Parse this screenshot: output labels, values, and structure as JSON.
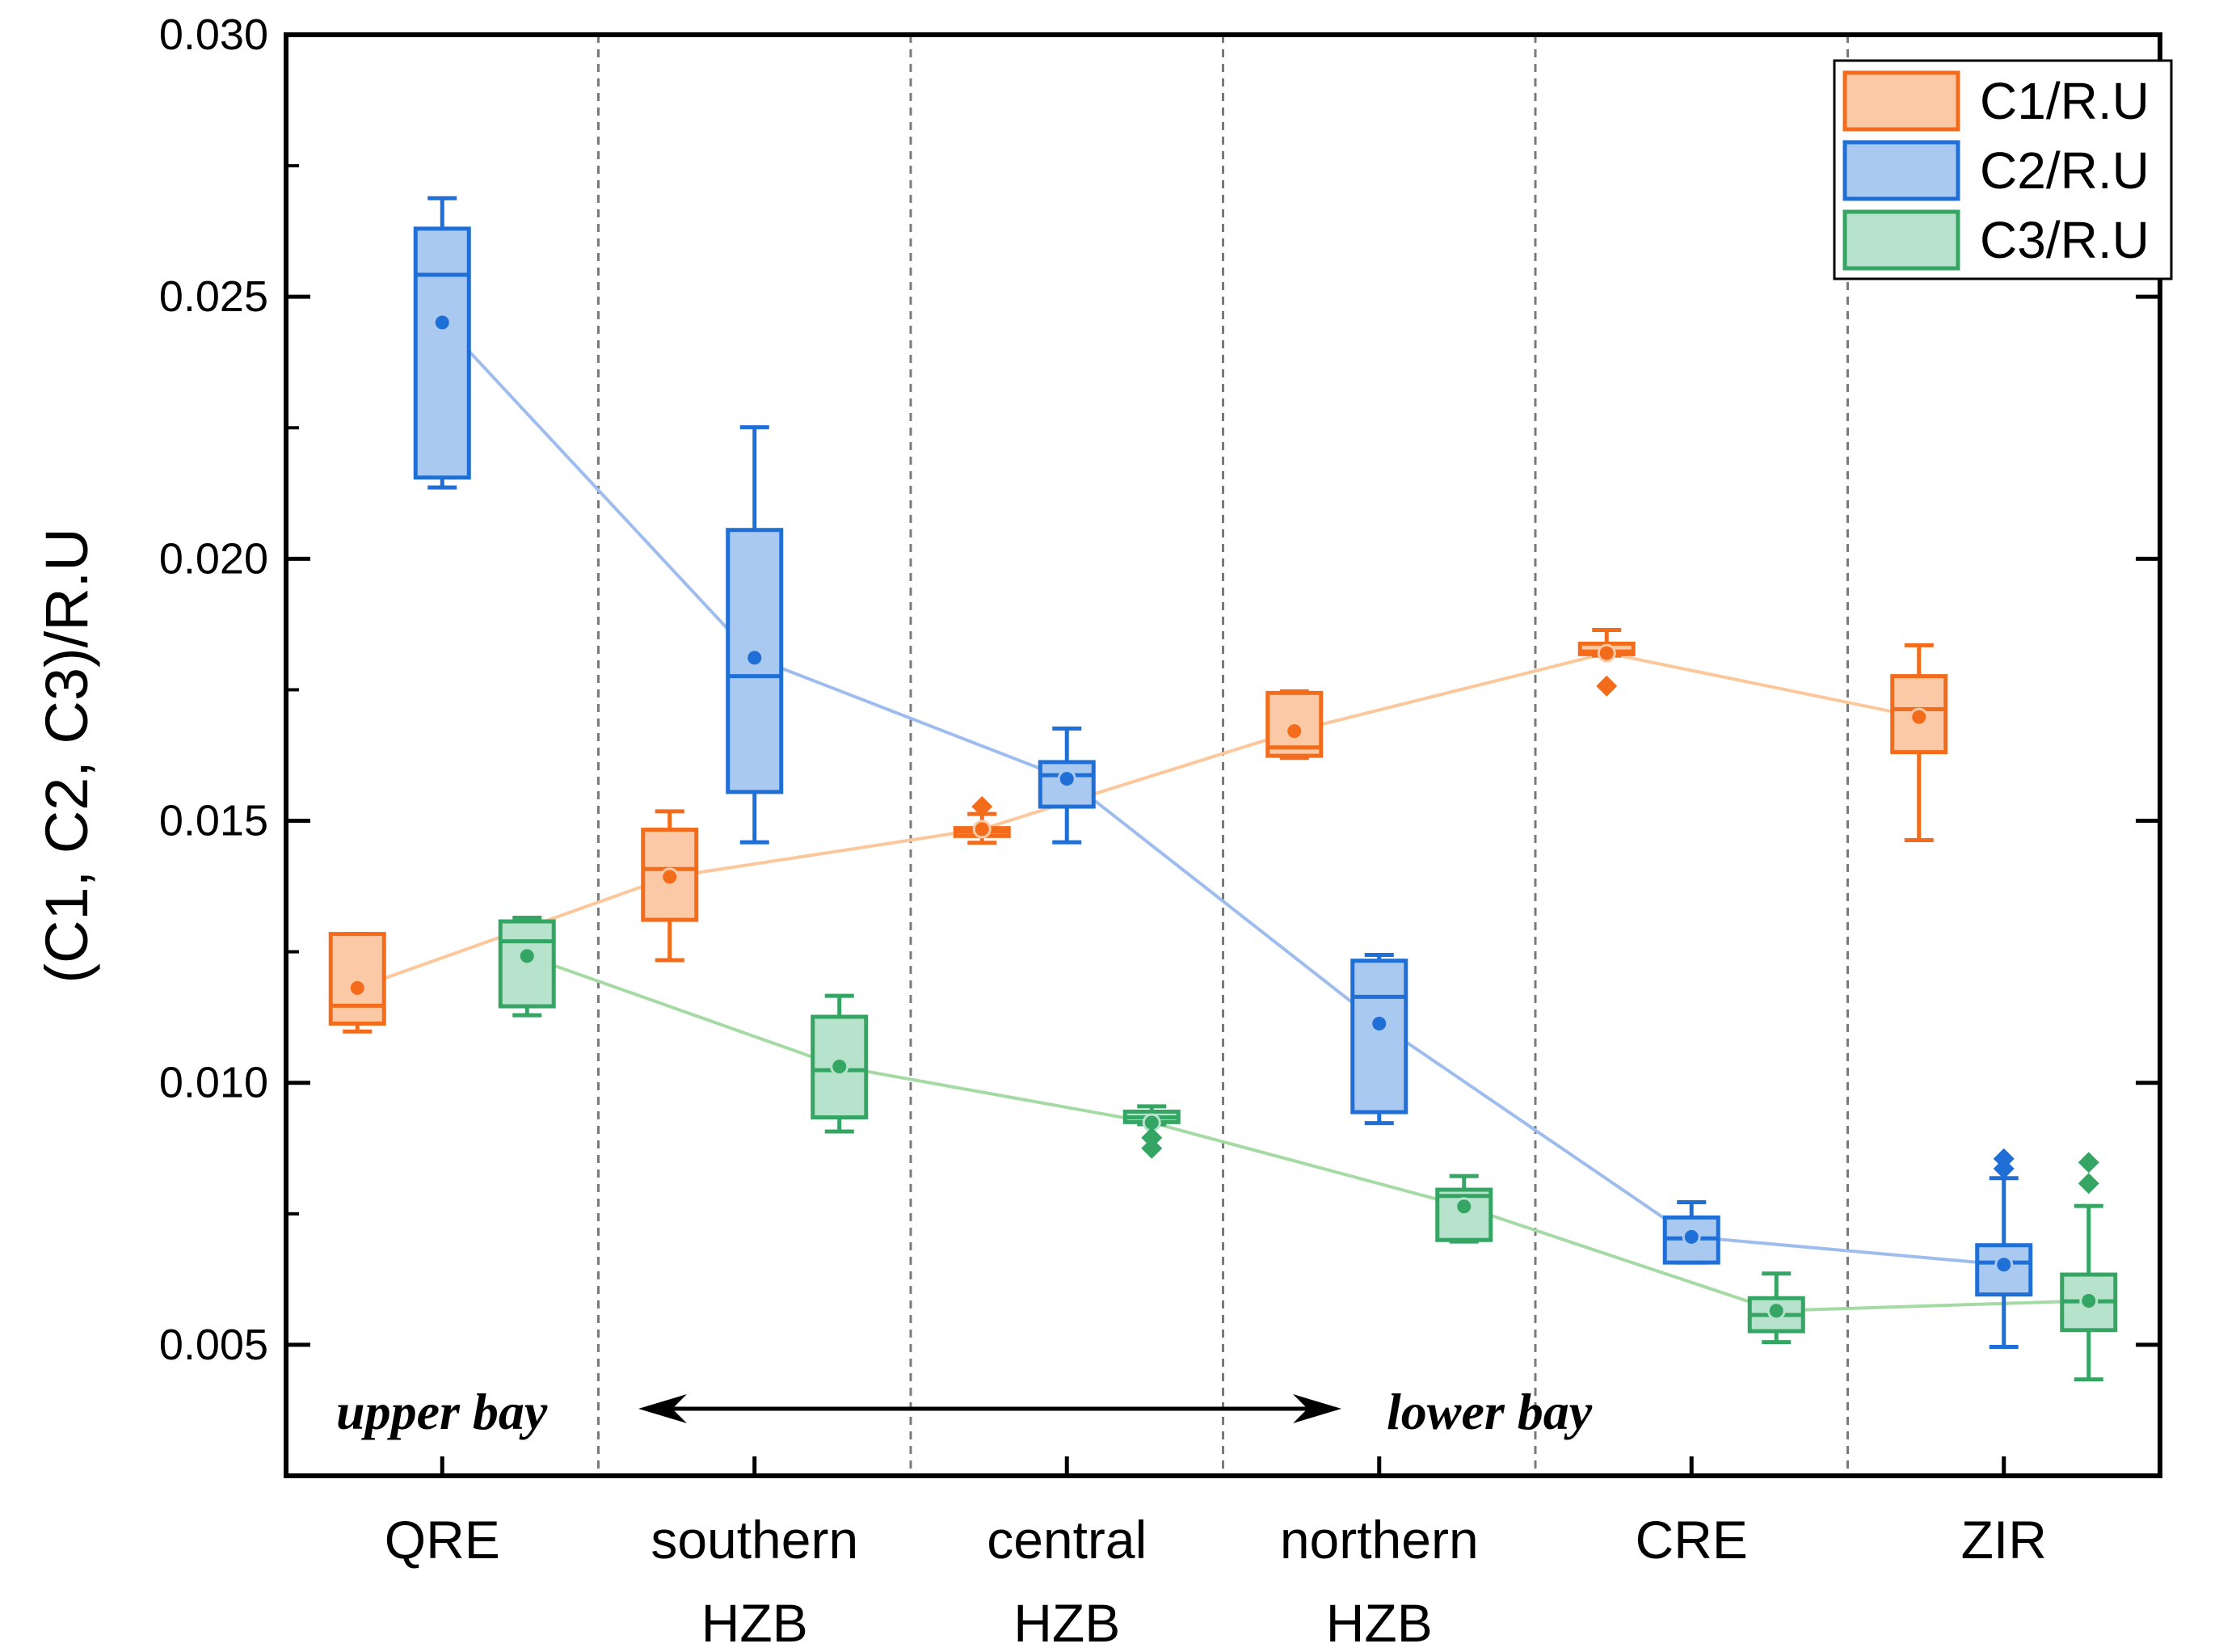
{
  "chart_data": {
    "type": "box",
    "ylabel": "(C1, C2, C3)/R.U",
    "xlabel": "",
    "ylim": [
      0.0025,
      0.03
    ],
    "yticks": [
      "0.005",
      "0.010",
      "0.015",
      "0.020",
      "0.025",
      "0.030"
    ],
    "grid": "vertical dashed separators between categories",
    "legend_position": "top-right",
    "categories": [
      {
        "lines": [
          "QRE"
        ]
      },
      {
        "lines": [
          "southern",
          "HZB"
        ]
      },
      {
        "lines": [
          "central",
          "HZB"
        ]
      },
      {
        "lines": [
          "northern",
          "HZB"
        ]
      },
      {
        "lines": [
          "CRE"
        ]
      },
      {
        "lines": [
          "ZIR"
        ]
      }
    ],
    "series": [
      {
        "name": "C1/R.U",
        "stroke": "#f26c1c",
        "fill": "#fcc9a6",
        "line_color": "#fbc79b",
        "boxes": [
          {
            "min": 0.01098,
            "q1": 0.01113,
            "median": 0.01147,
            "q3": 0.01284,
            "max": 0.01284,
            "mean": 0.01181,
            "outliers": []
          },
          {
            "min": 0.01234,
            "q1": 0.01311,
            "median": 0.01408,
            "q3": 0.01483,
            "max": 0.01518,
            "mean": 0.01393,
            "outliers": []
          },
          {
            "min": 0.01458,
            "q1": 0.01471,
            "median": 0.01479,
            "q3": 0.01486,
            "max": 0.01513,
            "mean": 0.01484,
            "outliers": [
              0.01527
            ]
          },
          {
            "min": 0.0162,
            "q1": 0.01624,
            "median": 0.0164,
            "q3": 0.01744,
            "max": 0.01747,
            "mean": 0.01671,
            "outliers": []
          },
          {
            "min": 0.01815,
            "q1": 0.01818,
            "median": 0.01823,
            "q3": 0.01838,
            "max": 0.01864,
            "mean": 0.0182,
            "outliers": [
              0.01757
            ]
          },
          {
            "min": 0.01463,
            "q1": 0.01631,
            "median": 0.01713,
            "q3": 0.01776,
            "max": 0.01835,
            "mean": 0.01698,
            "outliers": []
          }
        ]
      },
      {
        "name": "C2/R.U",
        "stroke": "#1f6fd6",
        "fill": "#aac9f1",
        "line_color": "#9ebdee",
        "boxes": [
          {
            "min": 0.02136,
            "q1": 0.02155,
            "median": 0.02542,
            "q3": 0.0263,
            "max": 0.02688,
            "mean": 0.02451,
            "outliers": []
          },
          {
            "min": 0.01459,
            "q1": 0.01555,
            "median": 0.01776,
            "q3": 0.02055,
            "max": 0.02251,
            "mean": 0.01811,
            "outliers": []
          },
          {
            "min": 0.01459,
            "q1": 0.01527,
            "median": 0.01587,
            "q3": 0.01612,
            "max": 0.01676,
            "mean": 0.0158,
            "outliers": []
          },
          {
            "min": 0.00923,
            "q1": 0.00944,
            "median": 0.01164,
            "q3": 0.01233,
            "max": 0.01244,
            "mean": 0.01113,
            "outliers": []
          },
          {
            "min": 0.00657,
            "q1": 0.00657,
            "median": 0.00703,
            "q3": 0.00743,
            "max": 0.00772,
            "mean": 0.00706,
            "outliers": []
          },
          {
            "min": 0.00496,
            "q1": 0.00596,
            "median": 0.00657,
            "q3": 0.0069,
            "max": 0.00818,
            "mean": 0.00653,
            "outliers": [
              0.00836,
              0.00855
            ]
          }
        ]
      },
      {
        "name": "C3/R.U",
        "stroke": "#35a564",
        "fill": "#b7e2cb",
        "line_color": "#a6daa4",
        "boxes": [
          {
            "min": 0.01129,
            "q1": 0.01146,
            "median": 0.0127,
            "q3": 0.01308,
            "max": 0.01315,
            "mean": 0.01242,
            "outliers": []
          },
          {
            "min": 0.00907,
            "q1": 0.00934,
            "median": 0.01024,
            "q3": 0.01126,
            "max": 0.01166,
            "mean": 0.01031,
            "outliers": []
          },
          {
            "min": 0.00921,
            "q1": 0.00925,
            "median": 0.00934,
            "q3": 0.00945,
            "max": 0.00955,
            "mean": 0.00924,
            "outliers": [
              0.00875,
              0.00895
            ]
          },
          {
            "min": 0.00697,
            "q1": 0.007,
            "median": 0.00784,
            "q3": 0.00796,
            "max": 0.00822,
            "mean": 0.00764,
            "outliers": []
          },
          {
            "min": 0.00505,
            "q1": 0.00526,
            "median": 0.00557,
            "q3": 0.00589,
            "max": 0.00636,
            "mean": 0.00565,
            "outliers": []
          },
          {
            "min": 0.00434,
            "q1": 0.00528,
            "median": 0.00583,
            "q3": 0.00634,
            "max": 0.00765,
            "mean": 0.00584,
            "outliers": [
              0.00808,
              0.00848
            ]
          }
        ]
      }
    ],
    "annotations": {
      "left": "upper bay",
      "right": "lower bay"
    }
  }
}
